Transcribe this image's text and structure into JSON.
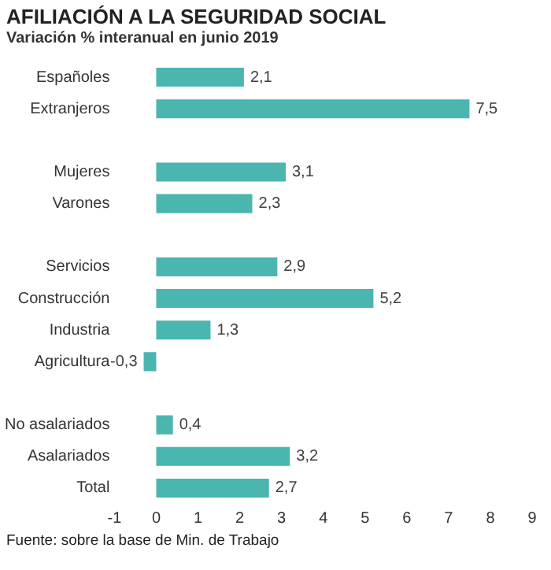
{
  "chart_data": {
    "type": "bar",
    "orientation": "horizontal",
    "title": "AFILIACIÓN A LA SEGURIDAD SOCIAL",
    "subtitle": "Variación % interanual en junio 2019",
    "categories": [
      "Españoles",
      "Extranjeros",
      null,
      "Mujeres",
      "Varones",
      null,
      "Servicios",
      "Construcción",
      "Industria",
      "Agricultura",
      null,
      "No asalariados",
      "Asalariados",
      "Total"
    ],
    "values": [
      2.1,
      7.5,
      null,
      3.1,
      2.3,
      null,
      2.9,
      5.2,
      1.3,
      -0.3,
      null,
      0.4,
      3.2,
      2.7
    ],
    "value_labels": [
      "2,1",
      "7,5",
      null,
      "3,1",
      "2,3",
      null,
      "2,9",
      "5,2",
      "1,3",
      "-0,3",
      null,
      "0,4",
      "3,2",
      "2,7"
    ],
    "color": "#4bb5b0",
    "xlim": [
      -1,
      9
    ],
    "xticks": [
      -1,
      0,
      1,
      2,
      3,
      4,
      5,
      6,
      7,
      8,
      9
    ],
    "grid": false,
    "legend": false,
    "annotations": [
      "Fuente: sobre la base de Min. de Trabajo"
    ]
  }
}
